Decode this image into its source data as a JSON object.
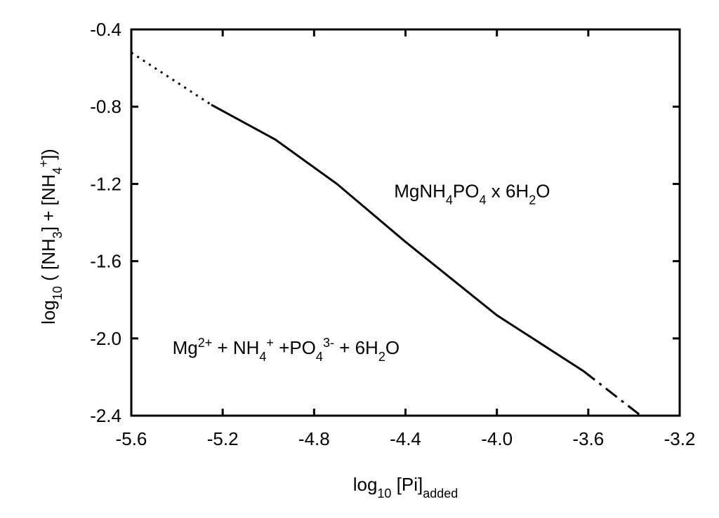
{
  "chart_data": {
    "type": "line",
    "x_label": {
      "parts": [
        {
          "text": "log",
          "shift": "base"
        },
        {
          "text": "10",
          "shift": "sub"
        },
        {
          "text": " [Pi]",
          "shift": "base"
        },
        {
          "text": "added",
          "shift": "sub"
        }
      ]
    },
    "y_label": {
      "parts": [
        {
          "text": "log",
          "shift": "base"
        },
        {
          "text": "10",
          "shift": "sub"
        },
        {
          "text": " ( [NH",
          "shift": "base"
        },
        {
          "text": "3",
          "shift": "sub"
        },
        {
          "text": "] + [NH",
          "shift": "base"
        },
        {
          "text": "4",
          "shift": "sub"
        },
        {
          "text": "+",
          "shift": "super"
        },
        {
          "text": "])",
          "shift": "base"
        }
      ]
    },
    "annotations": [
      {
        "x": -4.45,
        "y": -1.27,
        "parts": [
          {
            "text": "MgNH",
            "shift": "base"
          },
          {
            "text": "4",
            "shift": "sub"
          },
          {
            "text": "PO",
            "shift": "base"
          },
          {
            "text": "4",
            "shift": "sub"
          },
          {
            "text": " x 6H",
            "shift": "base"
          },
          {
            "text": "2",
            "shift": "sub"
          },
          {
            "text": "O",
            "shift": "base"
          }
        ]
      },
      {
        "x": -5.42,
        "y": -2.08,
        "parts": [
          {
            "text": "Mg",
            "shift": "base"
          },
          {
            "text": "2+",
            "shift": "super"
          },
          {
            "text": " + NH",
            "shift": "base"
          },
          {
            "text": "4",
            "shift": "sub"
          },
          {
            "text": "+",
            "shift": "super"
          },
          {
            "text": " +PO",
            "shift": "base"
          },
          {
            "text": "4",
            "shift": "sub"
          },
          {
            "text": "3-",
            "shift": "super"
          },
          {
            "text": " + 6H",
            "shift": "base"
          },
          {
            "text": "2",
            "shift": "sub"
          },
          {
            "text": "O",
            "shift": "base"
          }
        ]
      }
    ],
    "series": [
      {
        "color": "#000000",
        "style": "dotted",
        "x": [
          -5.6,
          -5.25
        ],
        "values": [
          -0.52,
          -0.79
        ]
      },
      {
        "color": "#000000",
        "style": "solid",
        "x": [
          -5.25,
          -4.97,
          -4.7,
          -4.4,
          -4.0,
          -3.62
        ],
        "values": [
          -0.79,
          -0.97,
          -1.2,
          -1.5,
          -1.88,
          -2.17
        ]
      },
      {
        "color": "#000000",
        "style": "dashdot",
        "x": [
          -3.62,
          -3.37
        ],
        "values": [
          -2.17,
          -2.4
        ]
      }
    ],
    "xlim": [
      -5.6,
      -3.2
    ],
    "ylim": [
      -2.4,
      -0.4
    ],
    "xticks": [
      {
        "value": -5.6,
        "label": "-5.6"
      },
      {
        "value": -5.2,
        "label": "-5.2"
      },
      {
        "value": -4.8,
        "label": "-4.8"
      },
      {
        "value": -4.4,
        "label": "-4.4"
      },
      {
        "value": -4.0,
        "label": "-4.0"
      },
      {
        "value": -3.6,
        "label": "-3.6"
      },
      {
        "value": -3.2,
        "label": "-3.2"
      }
    ],
    "yticks": [
      {
        "value": -2.4,
        "label": "-2.4"
      },
      {
        "value": -2.0,
        "label": "-2.0"
      },
      {
        "value": -1.6,
        "label": "-1.6"
      },
      {
        "value": -1.2,
        "label": "-1.2"
      },
      {
        "value": -0.8,
        "label": "-0.8"
      },
      {
        "value": -0.4,
        "label": "-0.4"
      }
    ]
  }
}
